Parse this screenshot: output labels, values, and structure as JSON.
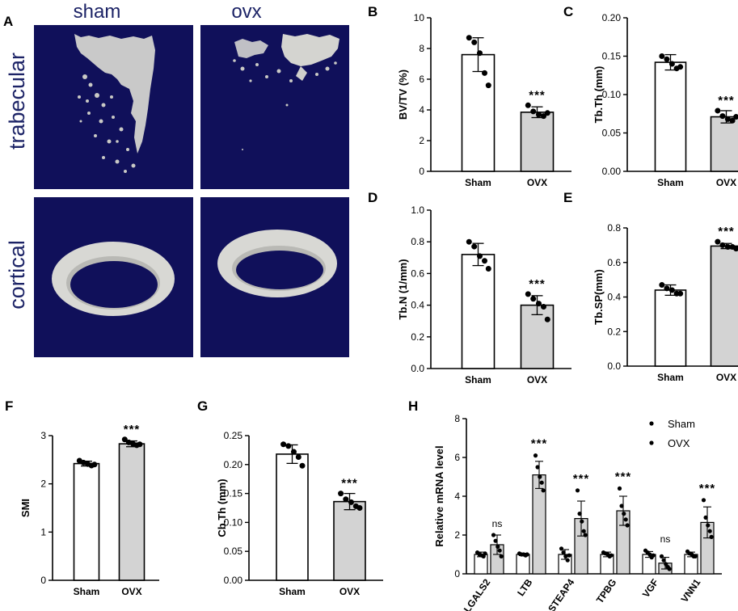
{
  "panel_a": {
    "label": "A",
    "columns": [
      "sham",
      "ovx"
    ],
    "rows": [
      "trabecular",
      "cortical"
    ],
    "background_color": "#10105a",
    "bone_color": "#d4d4d0"
  },
  "chart_data": [
    {
      "id": "B",
      "type": "bar",
      "panel_label": "B",
      "categories": [
        "Sham",
        "OVX"
      ],
      "ylabel": "BV/TV (%)",
      "ylim": [
        0,
        10
      ],
      "yticks": [
        0,
        2,
        4,
        6,
        8,
        10
      ],
      "yticklabels": [
        "0",
        "2",
        "4",
        "6",
        "8",
        "10"
      ],
      "values": [
        7.6,
        3.85
      ],
      "errors": [
        1.1,
        0.35
      ],
      "points": [
        [
          8.7,
          8.4,
          7.7,
          6.4,
          5.6
        ],
        [
          4.3,
          3.9,
          3.7,
          3.6,
          3.8
        ]
      ],
      "significance": [
        "",
        "***"
      ]
    },
    {
      "id": "C",
      "type": "bar",
      "panel_label": "C",
      "categories": [
        "Sham",
        "OVX"
      ],
      "ylabel": "Tb.Th (mm)",
      "ylim": [
        0,
        0.2
      ],
      "yticks": [
        0,
        0.05,
        0.1,
        0.15,
        0.2
      ],
      "yticklabels": [
        "0.00",
        "0.05",
        "0.10",
        "0.15",
        "0.20"
      ],
      "values": [
        0.142,
        0.071
      ],
      "errors": [
        0.01,
        0.008
      ],
      "points": [
        [
          0.15,
          0.146,
          0.14,
          0.134,
          0.136
        ],
        [
          0.079,
          0.072,
          0.068,
          0.066,
          0.071
        ]
      ],
      "significance": [
        "",
        "***"
      ]
    },
    {
      "id": "D",
      "type": "bar",
      "panel_label": "D",
      "categories": [
        "Sham",
        "OVX"
      ],
      "ylabel": "Tb.N (1/mm)",
      "ylim": [
        0,
        1.0
      ],
      "yticks": [
        0,
        0.2,
        0.4,
        0.6,
        0.8,
        1.0
      ],
      "yticklabels": [
        "0.0",
        "0.2",
        "0.4",
        "0.6",
        "0.8",
        "1.0"
      ],
      "values": [
        0.72,
        0.4
      ],
      "errors": [
        0.07,
        0.06
      ],
      "points": [
        [
          0.8,
          0.77,
          0.71,
          0.68,
          0.63
        ],
        [
          0.47,
          0.44,
          0.41,
          0.39,
          0.31
        ]
      ],
      "significance": [
        "",
        "***"
      ]
    },
    {
      "id": "E",
      "type": "bar",
      "panel_label": "E",
      "categories": [
        "Sham",
        "OVX"
      ],
      "ylabel": "Tb.SP(mm)",
      "ylim": [
        0,
        0.8
      ],
      "yticks": [
        0,
        0.2,
        0.4,
        0.6,
        0.8
      ],
      "yticklabels": [
        "0.0",
        "0.2",
        "0.4",
        "0.6",
        "0.8"
      ],
      "values": [
        0.44,
        0.695
      ],
      "errors": [
        0.03,
        0.015
      ],
      "points": [
        [
          0.47,
          0.45,
          0.44,
          0.42,
          0.42
        ],
        [
          0.72,
          0.7,
          0.69,
          0.69,
          0.68
        ]
      ],
      "significance": [
        "",
        "***"
      ]
    },
    {
      "id": "F",
      "type": "bar",
      "panel_label": "F",
      "categories": [
        "Sham",
        "OVX"
      ],
      "ylabel": "SMI",
      "ylim": [
        0,
        3
      ],
      "yticks": [
        0,
        1,
        2,
        3
      ],
      "yticklabels": [
        "0",
        "1",
        "2",
        "3"
      ],
      "values": [
        2.42,
        2.83
      ],
      "errors": [
        0.05,
        0.06
      ],
      "points": [
        [
          2.48,
          2.44,
          2.41,
          2.38,
          2.4
        ],
        [
          2.92,
          2.86,
          2.83,
          2.8,
          2.82
        ]
      ],
      "significance": [
        "",
        "***"
      ]
    },
    {
      "id": "G",
      "type": "bar",
      "panel_label": "G",
      "categories": [
        "Sham",
        "OVX"
      ],
      "ylabel": "Cb.Th (mm)",
      "ylim": [
        0,
        0.25
      ],
      "yticks": [
        0,
        0.05,
        0.1,
        0.15,
        0.2,
        0.25
      ],
      "yticklabels": [
        "0.00",
        "0.05",
        "0.10",
        "0.15",
        "0.20",
        "0.25"
      ],
      "values": [
        0.218,
        0.136
      ],
      "errors": [
        0.016,
        0.014
      ],
      "points": [
        [
          0.235,
          0.232,
          0.222,
          0.213,
          0.198
        ],
        [
          0.15,
          0.14,
          0.135,
          0.128,
          0.125
        ]
      ],
      "significance": [
        "",
        "***"
      ]
    },
    {
      "id": "H",
      "type": "bar",
      "panel_label": "H",
      "categories": [
        "LGALS2",
        "LTB",
        "STEAP4",
        "TPBG",
        "VGF",
        "VNN1"
      ],
      "ylabel": "Relative mRNA level",
      "ylim": [
        0,
        8
      ],
      "yticks": [
        0,
        2,
        4,
        6,
        8
      ],
      "yticklabels": [
        "0",
        "2",
        "4",
        "6",
        "8"
      ],
      "legend": {
        "position": "top-right"
      },
      "series": [
        {
          "name": "Sham",
          "color": "#ffffff",
          "values": [
            1.0,
            1.0,
            1.0,
            1.0,
            1.0,
            1.0
          ],
          "errors": [
            0.12,
            0.06,
            0.25,
            0.12,
            0.15,
            0.12
          ],
          "points": [
            [
              1.1,
              1.0,
              0.95,
              0.9,
              1.05
            ],
            [
              1.05,
              1.0,
              1.0,
              0.95,
              1.0
            ],
            [
              1.3,
              1.1,
              0.9,
              0.7,
              0.95
            ],
            [
              1.1,
              1.05,
              1.0,
              0.9,
              0.95
            ],
            [
              1.2,
              1.1,
              1.0,
              0.85,
              0.95
            ],
            [
              1.15,
              1.05,
              1.0,
              0.9,
              0.9
            ]
          ]
        },
        {
          "name": "OVX",
          "color": "#d3d3d3",
          "values": [
            1.5,
            5.1,
            2.85,
            3.25,
            0.55,
            2.65
          ],
          "errors": [
            0.5,
            0.7,
            0.9,
            0.75,
            0.3,
            0.8
          ],
          "points": [
            [
              2.0,
              1.7,
              1.4,
              1.2,
              0.9
            ],
            [
              6.1,
              5.5,
              5.0,
              4.7,
              4.3
            ],
            [
              4.3,
              3.1,
              2.7,
              2.2,
              2.0
            ],
            [
              4.4,
              3.5,
              3.1,
              2.8,
              2.5
            ],
            [
              0.9,
              0.7,
              0.5,
              0.35,
              0.25
            ],
            [
              3.8,
              2.9,
              2.5,
              2.2,
              1.9
            ]
          ]
        }
      ],
      "significance": [
        "ns",
        "***",
        "***",
        "***",
        "ns",
        "***"
      ]
    }
  ]
}
